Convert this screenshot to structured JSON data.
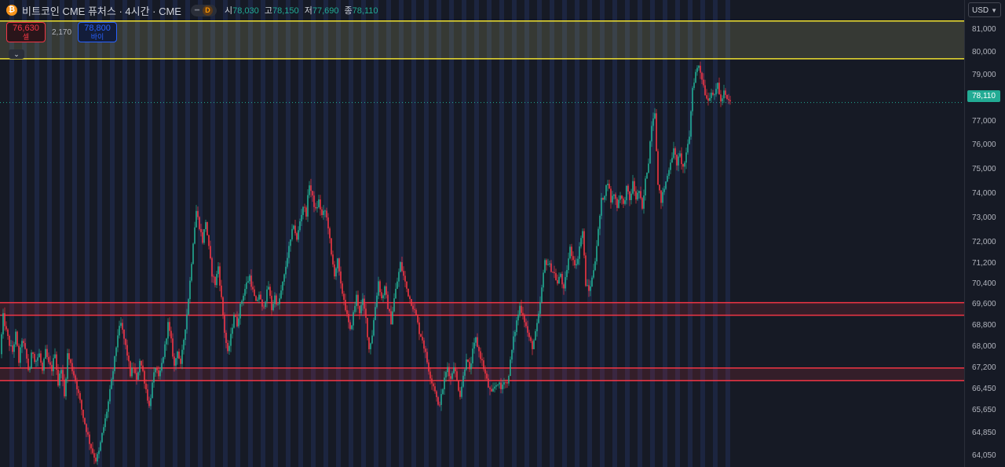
{
  "header": {
    "coin_glyph": "₿",
    "title": "비트코인 CME 퓨처스 · 4시간 · CME",
    "dash": "━",
    "badge": "D",
    "open_label": "시",
    "open": "78,030",
    "high_label": "고",
    "high": "78,150",
    "low_label": "저",
    "low": "77,690",
    "close_label": "종",
    "close": "78,110"
  },
  "trade": {
    "sell_price": "76,630",
    "sell_label": "셀",
    "spread": "2,170",
    "buy_price": "78,800",
    "buy_label": "바이",
    "collapse_icon": "chevron-down-icon"
  },
  "axis": {
    "currency": "USD",
    "ticks": [
      "81,000",
      "80,000",
      "79,000",
      "77,000",
      "76,000",
      "75,000",
      "74,000",
      "73,000",
      "72,000",
      "71,200",
      "70,400",
      "69,600",
      "68,800",
      "68,000",
      "67,200",
      "66,450",
      "65,650",
      "64,850",
      "64,050"
    ],
    "last_price": "78,110"
  },
  "colors": {
    "background": "#161a25",
    "up": "#22ab94",
    "down": "#f23645",
    "zone_yellow": "#f0e130",
    "zone_red": "#f23645",
    "session_shade": "#1c2540"
  },
  "chart_data": {
    "type": "candlestick",
    "symbol": "비트코인 CME 퓨처스",
    "timeframe": "4시간",
    "exchange": "CME",
    "ylim": [
      63800,
      81500
    ],
    "last_price": 78110,
    "zones": [
      {
        "kind": "resistance",
        "low": 79850,
        "high": 81350,
        "color": "#f0e130"
      },
      {
        "kind": "support",
        "low": 69650,
        "high": 70150,
        "color": "#f23645"
      },
      {
        "kind": "support",
        "low": 67050,
        "high": 67550,
        "color": "#f23645"
      }
    ],
    "close_path": [
      [
        0,
        68100
      ],
      [
        4,
        69600
      ],
      [
        8,
        69000
      ],
      [
        12,
        68500
      ],
      [
        16,
        68200
      ],
      [
        20,
        68900
      ],
      [
        24,
        67800
      ],
      [
        28,
        68700
      ],
      [
        33,
        68100
      ],
      [
        37,
        67300
      ],
      [
        41,
        68300
      ],
      [
        45,
        67800
      ],
      [
        50,
        68100
      ],
      [
        54,
        67400
      ],
      [
        58,
        68200
      ],
      [
        62,
        67700
      ],
      [
        66,
        67500
      ],
      [
        70,
        68200
      ],
      [
        74,
        66900
      ],
      [
        78,
        67600
      ],
      [
        82,
        66400
      ],
      [
        86,
        68100
      ],
      [
        90,
        67700
      ],
      [
        94,
        67300
      ],
      [
        98,
        66800
      ],
      [
        102,
        66200
      ],
      [
        106,
        65600
      ],
      [
        110,
        65100
      ],
      [
        114,
        64600
      ],
      [
        118,
        64200
      ],
      [
        122,
        63900
      ],
      [
        126,
        64200
      ],
      [
        130,
        64900
      ],
      [
        134,
        65500
      ],
      [
        138,
        66200
      ],
      [
        142,
        67000
      ],
      [
        146,
        67900
      ],
      [
        150,
        68900
      ],
      [
        154,
        69300
      ],
      [
        158,
        68700
      ],
      [
        162,
        68100
      ],
      [
        166,
        67300
      ],
      [
        170,
        67600
      ],
      [
        174,
        67000
      ],
      [
        178,
        67900
      ],
      [
        182,
        67400
      ],
      [
        186,
        66700
      ],
      [
        190,
        66000
      ],
      [
        194,
        66900
      ],
      [
        198,
        67600
      ],
      [
        202,
        67100
      ],
      [
        206,
        67700
      ],
      [
        210,
        68400
      ],
      [
        214,
        69300
      ],
      [
        218,
        68600
      ],
      [
        222,
        67600
      ],
      [
        226,
        68300
      ],
      [
        230,
        67600
      ],
      [
        234,
        68700
      ],
      [
        238,
        69700
      ],
      [
        242,
        71000
      ],
      [
        246,
        72600
      ],
      [
        250,
        73800
      ],
      [
        254,
        73200
      ],
      [
        258,
        72600
      ],
      [
        262,
        73400
      ],
      [
        266,
        72300
      ],
      [
        270,
        71300
      ],
      [
        274,
        70900
      ],
      [
        278,
        71600
      ],
      [
        282,
        70300
      ],
      [
        286,
        69000
      ],
      [
        290,
        68100
      ],
      [
        294,
        68800
      ],
      [
        298,
        69700
      ],
      [
        302,
        69300
      ],
      [
        306,
        70000
      ],
      [
        310,
        70500
      ],
      [
        314,
        70900
      ],
      [
        318,
        71200
      ],
      [
        322,
        70600
      ],
      [
        326,
        70100
      ],
      [
        330,
        70500
      ],
      [
        334,
        69900
      ],
      [
        338,
        70300
      ],
      [
        342,
        70800
      ],
      [
        346,
        69900
      ],
      [
        350,
        70400
      ],
      [
        354,
        70000
      ],
      [
        358,
        70600
      ],
      [
        362,
        71200
      ],
      [
        366,
        72000
      ],
      [
        370,
        72600
      ],
      [
        374,
        73300
      ],
      [
        378,
        72600
      ],
      [
        382,
        73400
      ],
      [
        386,
        74000
      ],
      [
        390,
        73700
      ],
      [
        394,
        74900
      ],
      [
        398,
        74300
      ],
      [
        402,
        73800
      ],
      [
        406,
        74200
      ],
      [
        410,
        73600
      ],
      [
        414,
        73800
      ],
      [
        418,
        73200
      ],
      [
        422,
        72000
      ],
      [
        426,
        71300
      ],
      [
        430,
        71800
      ],
      [
        434,
        70800
      ],
      [
        438,
        70300
      ],
      [
        442,
        69600
      ],
      [
        446,
        69000
      ],
      [
        450,
        69700
      ],
      [
        454,
        70400
      ],
      [
        458,
        69800
      ],
      [
        462,
        70200
      ],
      [
        466,
        69500
      ],
      [
        470,
        68300
      ],
      [
        474,
        68900
      ],
      [
        478,
        70000
      ],
      [
        482,
        71000
      ],
      [
        486,
        70300
      ],
      [
        490,
        70700
      ],
      [
        494,
        70000
      ],
      [
        498,
        69400
      ],
      [
        502,
        70300
      ],
      [
        506,
        71000
      ],
      [
        510,
        71700
      ],
      [
        514,
        71200
      ],
      [
        518,
        70700
      ],
      [
        522,
        70300
      ],
      [
        526,
        70000
      ],
      [
        530,
        69600
      ],
      [
        534,
        69000
      ],
      [
        538,
        68700
      ],
      [
        542,
        68100
      ],
      [
        546,
        67500
      ],
      [
        550,
        67000
      ],
      [
        554,
        66700
      ],
      [
        558,
        66000
      ],
      [
        562,
        66400
      ],
      [
        566,
        67100
      ],
      [
        570,
        67600
      ],
      [
        574,
        67100
      ],
      [
        578,
        67700
      ],
      [
        582,
        67000
      ],
      [
        586,
        66500
      ],
      [
        590,
        67200
      ],
      [
        594,
        68000
      ],
      [
        598,
        67400
      ],
      [
        602,
        68200
      ],
      [
        606,
        68700
      ],
      [
        610,
        68200
      ],
      [
        614,
        67800
      ],
      [
        618,
        67300
      ],
      [
        622,
        66800
      ],
      [
        626,
        66500
      ],
      [
        630,
        66800
      ],
      [
        634,
        67000
      ],
      [
        638,
        66700
      ],
      [
        642,
        67100
      ],
      [
        646,
        66900
      ],
      [
        650,
        67800
      ],
      [
        654,
        68700
      ],
      [
        658,
        69400
      ],
      [
        662,
        70000
      ],
      [
        666,
        69700
      ],
      [
        670,
        69200
      ],
      [
        674,
        68700
      ],
      [
        678,
        68400
      ],
      [
        682,
        68900
      ],
      [
        686,
        69600
      ],
      [
        690,
        70700
      ],
      [
        694,
        71800
      ],
      [
        698,
        71700
      ],
      [
        702,
        71500
      ],
      [
        706,
        71300
      ],
      [
        710,
        70900
      ],
      [
        714,
        71300
      ],
      [
        718,
        70600
      ],
      [
        722,
        71500
      ],
      [
        726,
        72300
      ],
      [
        730,
        71900
      ],
      [
        734,
        71600
      ],
      [
        738,
        72400
      ],
      [
        742,
        73000
      ],
      [
        746,
        70900
      ],
      [
        750,
        70600
      ],
      [
        754,
        71100
      ],
      [
        758,
        71900
      ],
      [
        762,
        73000
      ],
      [
        766,
        74200
      ],
      [
        770,
        74500
      ],
      [
        774,
        75000
      ],
      [
        778,
        74200
      ],
      [
        782,
        74500
      ],
      [
        786,
        74000
      ],
      [
        790,
        74500
      ],
      [
        794,
        74000
      ],
      [
        798,
        74700
      ],
      [
        802,
        74200
      ],
      [
        806,
        74900
      ],
      [
        810,
        74300
      ],
      [
        814,
        74600
      ],
      [
        818,
        73800
      ],
      [
        822,
        75000
      ],
      [
        826,
        75800
      ],
      [
        830,
        77300
      ],
      [
        834,
        77800
      ],
      [
        838,
        74800
      ],
      [
        842,
        74200
      ],
      [
        846,
        74700
      ],
      [
        850,
        75200
      ],
      [
        854,
        75800
      ],
      [
        858,
        76200
      ],
      [
        862,
        75700
      ],
      [
        866,
        76000
      ],
      [
        870,
        75500
      ],
      [
        874,
        76000
      ],
      [
        878,
        76800
      ],
      [
        882,
        78700
      ],
      [
        886,
        79300
      ],
      [
        890,
        79600
      ],
      [
        894,
        79100
      ],
      [
        898,
        78500
      ],
      [
        902,
        78200
      ],
      [
        906,
        78600
      ],
      [
        910,
        78300
      ],
      [
        914,
        78900
      ],
      [
        918,
        78100
      ],
      [
        922,
        78500
      ],
      [
        926,
        78200
      ],
      [
        930,
        78110
      ]
    ]
  }
}
